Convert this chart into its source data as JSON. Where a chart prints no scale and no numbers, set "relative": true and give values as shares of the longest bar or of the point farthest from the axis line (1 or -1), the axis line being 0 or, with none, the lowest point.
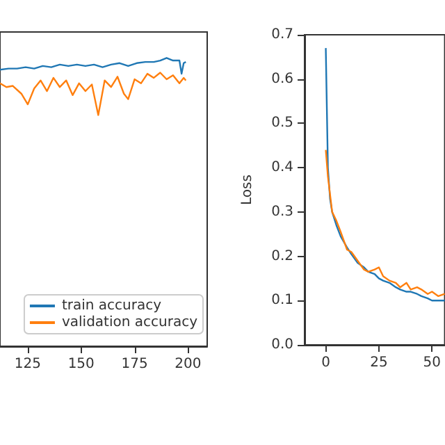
{
  "chart_data": [
    {
      "type": "line",
      "relative": true,
      "xlim": [
        112,
        209
      ],
      "xticks": [
        125,
        150,
        175,
        200
      ],
      "legend": "bottom right",
      "grid": false,
      "series": [
        {
          "name": "train accuracy",
          "color": "#1f77b4",
          "x": [
            112,
            116,
            120,
            124,
            128,
            132,
            136,
            140,
            144,
            148,
            152,
            156,
            160,
            164,
            168,
            172,
            176,
            180,
            184,
            187,
            190,
            193,
            196,
            197,
            198,
            199
          ],
          "values": [
            0.959,
            0.963,
            0.963,
            0.968,
            0.963,
            0.972,
            0.968,
            0.977,
            0.972,
            0.977,
            0.972,
            0.977,
            0.968,
            0.977,
            0.982,
            0.972,
            0.982,
            0.986,
            0.986,
            0.991,
            1,
            0.991,
            0.991,
            0.945,
            0.982,
            0.986
          ]
        },
        {
          "name": "validation accuracy",
          "color": "#ff7f0e",
          "x": [
            112,
            115,
            118,
            122,
            125,
            128,
            131,
            134,
            137,
            140,
            143,
            146,
            149,
            152,
            155,
            158,
            161,
            164,
            167,
            170,
            172,
            175,
            178,
            181,
            184,
            187,
            190,
            193,
            196,
            198,
            199
          ],
          "values": [
            0.912,
            0.899,
            0.903,
            0.876,
            0.839,
            0.894,
            0.922,
            0.885,
            0.931,
            0.899,
            0.922,
            0.871,
            0.912,
            0.885,
            0.908,
            0.802,
            0.922,
            0.899,
            0.935,
            0.876,
            0.857,
            0.926,
            0.912,
            0.945,
            0.931,
            0.949,
            0.926,
            0.94,
            0.912,
            0.931,
            0.922
          ]
        }
      ]
    },
    {
      "type": "line",
      "ylabel": "Loss",
      "xlim": [
        -10,
        56
      ],
      "xticks": [
        0,
        25,
        50
      ],
      "ylim": [
        0,
        0.7
      ],
      "yticks": [
        {
          "value": 0,
          "label": "0.0"
        },
        0.1,
        0.2,
        0.3,
        0.4,
        0.5,
        0.6,
        0.7
      ],
      "grid": false,
      "legend": false,
      "series": [
        {
          "color": "#1f77b4",
          "x": [
            0,
            1,
            2,
            3,
            5,
            7,
            10,
            12,
            15,
            18,
            20,
            23,
            25,
            27,
            30,
            33,
            35,
            38,
            40,
            43,
            45,
            48,
            50,
            53,
            56
          ],
          "values": [
            0.67,
            0.4,
            0.33,
            0.3,
            0.27,
            0.245,
            0.22,
            0.205,
            0.185,
            0.175,
            0.165,
            0.16,
            0.15,
            0.145,
            0.14,
            0.13,
            0.125,
            0.12,
            0.12,
            0.115,
            0.11,
            0.105,
            0.1,
            0.1,
            0.1
          ]
        },
        {
          "color": "#ff7f0e",
          "x": [
            0,
            1,
            2,
            3,
            5,
            7,
            10,
            12,
            15,
            18,
            20,
            23,
            25,
            27,
            30,
            33,
            35,
            38,
            40,
            43,
            45,
            48,
            50,
            53,
            56
          ],
          "values": [
            0.44,
            0.38,
            0.34,
            0.3,
            0.28,
            0.255,
            0.215,
            0.21,
            0.19,
            0.17,
            0.165,
            0.17,
            0.175,
            0.155,
            0.145,
            0.14,
            0.13,
            0.14,
            0.125,
            0.13,
            0.125,
            0.115,
            0.12,
            0.11,
            0.115
          ]
        }
      ]
    }
  ]
}
